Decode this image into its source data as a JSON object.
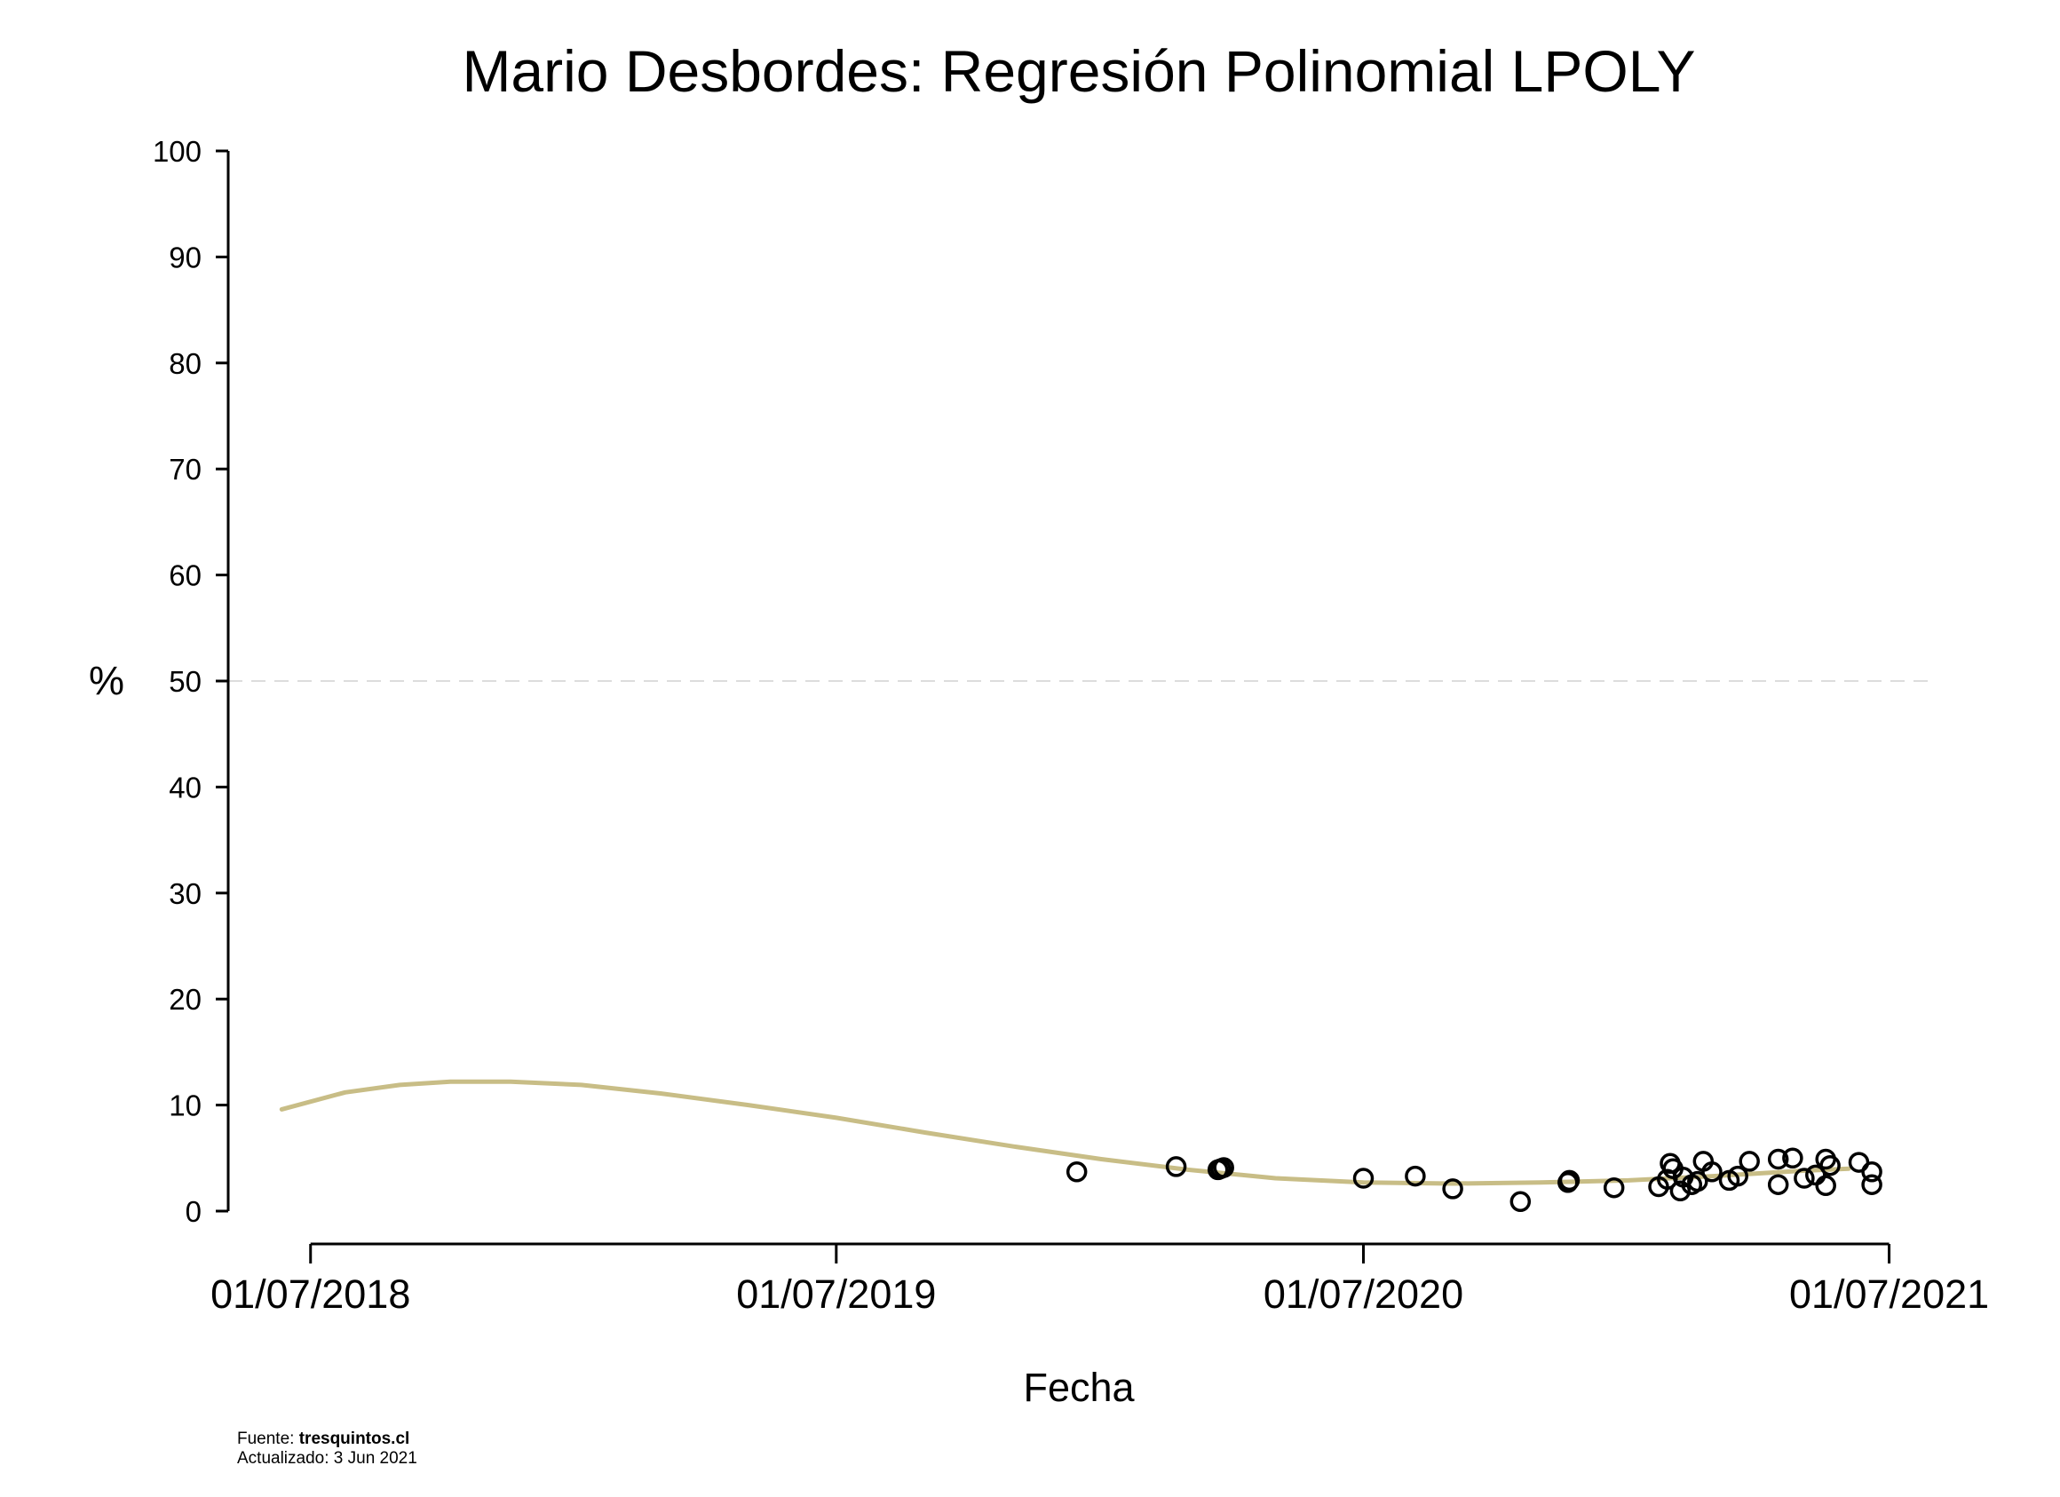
{
  "chart_data": {
    "type": "scatter",
    "title": "Mario Desbordes: Regresión Polinomial LPOLY",
    "xlabel": "Fecha",
    "ylabel": "%",
    "ylim": [
      0,
      100
    ],
    "yticks": [
      "0",
      "10",
      "20",
      "30",
      "40",
      "50",
      "60",
      "70",
      "80",
      "90",
      "100"
    ],
    "xlim": [
      "2018-05-19",
      "2021-07-21"
    ],
    "xticks": [
      {
        "date": "2018-07-01",
        "label": "01/07/2018"
      },
      {
        "date": "2019-07-01",
        "label": "01/07/2019"
      },
      {
        "date": "2020-07-01",
        "label": "01/07/2020"
      },
      {
        "date": "2021-07-01",
        "label": "01/07/2021"
      }
    ],
    "reference_line": {
      "y": 50,
      "style": "dashed",
      "color": "#dddddd"
    },
    "grid": false,
    "series": [
      {
        "kind": "line",
        "color": "#c8bd86",
        "points": [
          [
            "2018-06-11",
            9.6
          ],
          [
            "2018-07-25",
            11.2
          ],
          [
            "2018-09-01",
            11.9
          ],
          [
            "2018-10-06",
            12.2
          ],
          [
            "2018-11-17",
            12.2
          ],
          [
            "2019-01-05",
            11.9
          ],
          [
            "2019-03-01",
            11.1
          ],
          [
            "2019-05-01",
            10.0
          ],
          [
            "2019-07-01",
            8.8
          ],
          [
            "2019-09-01",
            7.4
          ],
          [
            "2019-11-01",
            6.1
          ],
          [
            "2020-01-01",
            4.9
          ],
          [
            "2020-03-01",
            3.9
          ],
          [
            "2020-05-01",
            3.1
          ],
          [
            "2020-07-01",
            2.7
          ],
          [
            "2020-09-01",
            2.6
          ],
          [
            "2020-11-01",
            2.7
          ],
          [
            "2021-01-01",
            2.9
          ],
          [
            "2021-03-01",
            3.3
          ],
          [
            "2021-05-01",
            3.8
          ],
          [
            "2021-06-03",
            4.0
          ]
        ]
      },
      {
        "kind": "points",
        "marker": "hollow-circle",
        "color": "#000000",
        "points": [
          [
            "2019-12-15",
            3.7
          ],
          [
            "2020-02-22",
            4.2
          ],
          [
            "2020-03-22",
            3.9
          ],
          [
            "2020-03-24",
            4.0
          ],
          [
            "2020-03-26",
            4.1
          ],
          [
            "2020-07-01",
            3.1
          ],
          [
            "2020-08-06",
            3.3
          ],
          [
            "2020-09-01",
            2.1
          ],
          [
            "2020-10-18",
            0.9
          ],
          [
            "2020-11-20",
            2.7
          ],
          [
            "2020-11-21",
            2.9
          ],
          [
            "2020-12-22",
            2.2
          ],
          [
            "2021-01-22",
            2.3
          ],
          [
            "2021-01-28",
            3.0
          ],
          [
            "2021-01-30",
            4.5
          ],
          [
            "2021-02-01",
            4.0
          ],
          [
            "2021-02-06",
            1.9
          ],
          [
            "2021-02-08",
            3.2
          ],
          [
            "2021-02-14",
            2.5
          ],
          [
            "2021-02-18",
            2.8
          ],
          [
            "2021-02-22",
            4.7
          ],
          [
            "2021-02-28",
            3.7
          ],
          [
            "2021-03-12",
            2.9
          ],
          [
            "2021-03-18",
            3.3
          ],
          [
            "2021-03-26",
            4.7
          ],
          [
            "2021-04-15",
            4.9
          ],
          [
            "2021-04-15",
            2.5
          ],
          [
            "2021-04-25",
            5.0
          ],
          [
            "2021-05-03",
            3.1
          ],
          [
            "2021-05-11",
            3.4
          ],
          [
            "2021-05-18",
            4.9
          ],
          [
            "2021-05-18",
            2.4
          ],
          [
            "2021-05-21",
            4.3
          ],
          [
            "2021-06-10",
            4.6
          ],
          [
            "2021-06-19",
            3.7
          ],
          [
            "2021-06-19",
            2.5
          ]
        ]
      }
    ]
  },
  "footer": {
    "source_prefix": "Fuente: ",
    "source_name": "tresquintos.cl",
    "updated": "Actualizado: 3 Jun 2021"
  }
}
